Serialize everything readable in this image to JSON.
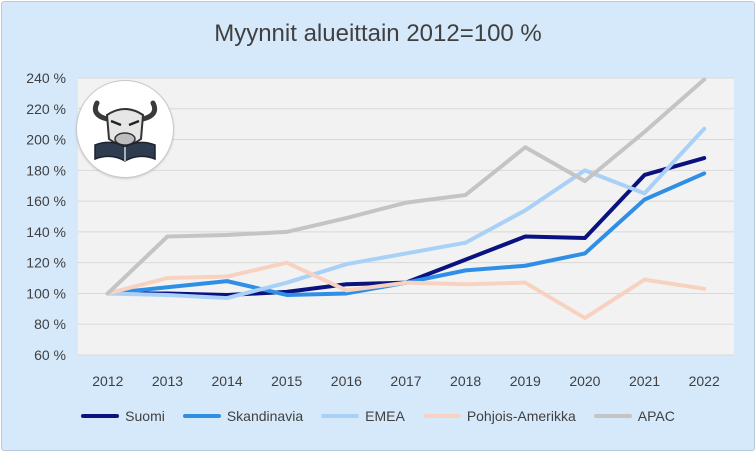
{
  "chart_data": {
    "type": "line",
    "title": "Myynnit alueittain 2012=100 %",
    "categories": [
      "2012",
      "2013",
      "2014",
      "2015",
      "2016",
      "2017",
      "2018",
      "2019",
      "2020",
      "2021",
      "2022"
    ],
    "ylim": [
      60,
      240
    ],
    "yticks": [
      60,
      80,
      100,
      120,
      140,
      160,
      180,
      200,
      220,
      240
    ],
    "ytick_labels": [
      "60 %",
      "80 %",
      "100 %",
      "120 %",
      "140 %",
      "160 %",
      "180 %",
      "200 %",
      "220 %",
      "240 %"
    ],
    "grid": true,
    "legend_position": "bottom",
    "series": [
      {
        "name": "Suomi",
        "color": "#0a1280",
        "values": [
          100,
          100,
          99,
          101,
          106,
          107,
          122,
          137,
          136,
          177,
          188
        ]
      },
      {
        "name": "Skandinavia",
        "color": "#2f8fe6",
        "values": [
          100,
          104,
          108,
          99,
          100,
          107,
          115,
          118,
          126,
          161,
          178
        ]
      },
      {
        "name": "EMEA",
        "color": "#a9d1f7",
        "values": [
          100,
          99,
          97,
          107,
          119,
          126,
          133,
          154,
          180,
          165,
          207
        ]
      },
      {
        "name": "Pohjois-Amerikka",
        "color": "#f8d2c0",
        "values": [
          100,
          110,
          111,
          120,
          102,
          107,
          106,
          107,
          84,
          109,
          103
        ]
      },
      {
        "name": "APAC",
        "color": "#c4c4c4",
        "values": [
          100,
          137,
          138,
          140,
          149,
          159,
          164,
          195,
          173,
          205,
          239
        ]
      }
    ]
  },
  "logo": {
    "icon": "bull-reading-book-icon"
  }
}
